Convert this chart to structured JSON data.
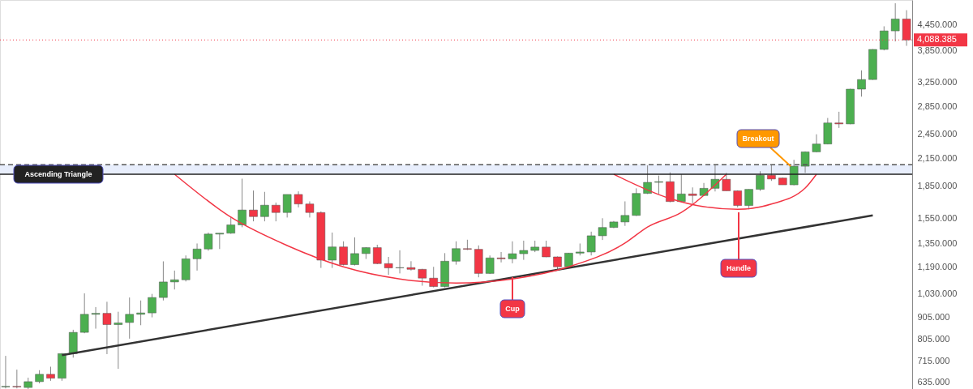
{
  "chart_data": {
    "type": "candlestick",
    "log": "y",
    "grid": false,
    "tick_labels": "y",
    "categories": [
      null,
      null,
      null,
      null,
      null,
      null,
      null,
      null,
      null,
      null,
      null,
      null,
      null,
      null,
      null,
      null,
      null,
      null,
      null,
      null,
      null,
      null,
      null,
      null,
      null,
      null,
      null,
      null,
      null,
      null,
      null,
      null,
      null,
      null,
      null,
      null,
      null,
      null,
      null,
      null,
      null,
      null,
      null,
      null,
      null,
      null,
      null,
      null,
      null,
      null,
      null,
      null,
      null,
      null,
      null,
      null,
      null,
      null,
      null,
      null,
      null,
      null,
      null,
      null,
      null,
      null,
      null,
      null,
      null,
      null,
      null,
      null,
      null,
      null,
      null,
      null,
      null,
      null,
      null,
      null,
      null
    ],
    "ohlc": [
      [
        620,
        734,
        615,
        622
      ],
      [
        622,
        681,
        615,
        620
      ],
      [
        618,
        652,
        613,
        638
      ],
      [
        638,
        679,
        632,
        664
      ],
      [
        664,
        692,
        641,
        650
      ],
      [
        650,
        745,
        641,
        743
      ],
      [
        743,
        846,
        727,
        834
      ],
      [
        834,
        1031,
        830,
        920
      ],
      [
        920,
        957,
        851,
        925
      ],
      [
        925,
        985,
        741,
        870
      ],
      [
        870,
        933,
        684,
        878
      ],
      [
        880,
        1008,
        806,
        920
      ],
      [
        920,
        992,
        867,
        927
      ],
      [
        927,
        1028,
        905,
        1008
      ],
      [
        1008,
        1227,
        992,
        1097
      ],
      [
        1097,
        1167,
        1053,
        1110
      ],
      [
        1110,
        1267,
        1100,
        1244
      ],
      [
        1244,
        1352,
        1167,
        1312
      ],
      [
        1312,
        1435,
        1300,
        1423
      ],
      [
        1423,
        1430,
        1312,
        1430
      ],
      [
        1430,
        1563,
        1425,
        1496
      ],
      [
        1496,
        1923,
        1477,
        1622
      ],
      [
        1622,
        1803,
        1525,
        1565
      ],
      [
        1565,
        1790,
        1525,
        1665
      ],
      [
        1665,
        1689,
        1525,
        1600
      ],
      [
        1600,
        1765,
        1557,
        1765
      ],
      [
        1765,
        1795,
        1645,
        1676
      ],
      [
        1676,
        1700,
        1557,
        1600
      ],
      [
        1600,
        1610,
        1184,
        1235
      ],
      [
        1235,
        1435,
        1184,
        1327
      ],
      [
        1327,
        1368,
        1200,
        1205
      ],
      [
        1205,
        1398,
        1200,
        1280
      ],
      [
        1280,
        1325,
        1243,
        1322
      ],
      [
        1322,
        1343,
        1208,
        1212
      ],
      [
        1212,
        1257,
        1140,
        1184
      ],
      [
        1184,
        1303,
        1149,
        1186
      ],
      [
        1186,
        1228,
        1167,
        1175
      ],
      [
        1175,
        1178,
        1075,
        1120
      ],
      [
        1120,
        1191,
        1065,
        1070
      ],
      [
        1070,
        1283,
        1065,
        1228
      ],
      [
        1228,
        1368,
        1205,
        1315
      ],
      [
        1315,
        1380,
        1305,
        1310
      ],
      [
        1310,
        1338,
        1125,
        1149
      ],
      [
        1149,
        1267,
        1145,
        1250
      ],
      [
        1250,
        1291,
        1220,
        1244
      ],
      [
        1244,
        1368,
        1214,
        1279
      ],
      [
        1279,
        1373,
        1237,
        1302
      ],
      [
        1302,
        1373,
        1290,
        1326
      ],
      [
        1326,
        1373,
        1255,
        1257
      ],
      [
        1257,
        1260,
        1167,
        1191
      ],
      [
        1191,
        1285,
        1185,
        1283
      ],
      [
        1283,
        1352,
        1267,
        1291
      ],
      [
        1291,
        1442,
        1267,
        1410
      ],
      [
        1410,
        1551,
        1378,
        1475
      ],
      [
        1475,
        1528,
        1470,
        1520
      ],
      [
        1520,
        1700,
        1488,
        1575
      ],
      [
        1575,
        1825,
        1570,
        1775
      ],
      [
        1775,
        2067,
        1770,
        1885
      ],
      [
        1885,
        1956,
        1770,
        1892
      ],
      [
        1892,
        1990,
        1692,
        1698
      ],
      [
        1698,
        1970,
        1692,
        1770
      ],
      [
        1770,
        1834,
        1683,
        1755
      ],
      [
        1755,
        1879,
        1750,
        1825
      ],
      [
        1825,
        2074,
        1794,
        1917
      ],
      [
        1917,
        1985,
        1800,
        1800
      ],
      [
        1800,
        1805,
        1645,
        1662
      ],
      [
        1662,
        1815,
        1628,
        1815
      ],
      [
        1815,
        2003,
        1800,
        1960
      ],
      [
        1960,
        2074,
        1900,
        1920
      ],
      [
        1930,
        1935,
        1860,
        1860
      ],
      [
        1860,
        2131,
        1855,
        2058
      ],
      [
        2058,
        2230,
        1985,
        2225
      ],
      [
        2225,
        2448,
        2220,
        2322
      ],
      [
        2322,
        2675,
        2318,
        2604
      ],
      [
        2604,
        2767,
        2534,
        2590
      ],
      [
        2590,
        3135,
        2585,
        3129
      ],
      [
        3129,
        3465,
        3004,
        3297
      ],
      [
        3297,
        3890,
        3290,
        3883
      ],
      [
        3883,
        4403,
        3863,
        4295
      ],
      [
        4295,
        4990,
        4055,
        4582
      ],
      [
        4582,
        4806,
        3960,
        4088
      ]
    ],
    "colors": [
      "#4caf50",
      "#f23645",
      "#4caf50",
      "#4caf50",
      "#f23645",
      "#4caf50",
      "#4caf50",
      "#4caf50",
      "#4caf50",
      "#f23645",
      "#4caf50",
      "#4caf50",
      "#4caf50",
      "#4caf50",
      "#4caf50",
      "#4caf50",
      "#4caf50",
      "#4caf50",
      "#4caf50",
      "#4caf50",
      "#4caf50",
      "#4caf50",
      "#f23645",
      "#4caf50",
      "#f23645",
      "#4caf50",
      "#f23645",
      "#f23645",
      "#f23645",
      "#4caf50",
      "#f23645",
      "#4caf50",
      "#4caf50",
      "#f23645",
      "#f23645",
      "#4caf50",
      "#f23645",
      "#f23645",
      "#f23645",
      "#4caf50",
      "#4caf50",
      "#f23645",
      "#f23645",
      "#4caf50",
      "#f23645",
      "#4caf50",
      "#4caf50",
      "#4caf50",
      "#f23645",
      "#f23645",
      "#4caf50",
      "#4caf50",
      "#4caf50",
      "#4caf50",
      "#4caf50",
      "#4caf50",
      "#4caf50",
      "#4caf50",
      "#4caf50",
      "#f23645",
      "#4caf50",
      "#f23645",
      "#4caf50",
      "#4caf50",
      "#f23645",
      "#f23645",
      "#4caf50",
      "#4caf50",
      "#f23645",
      "#f23645",
      "#4caf50",
      "#4caf50",
      "#4caf50",
      "#4caf50",
      "#f23645",
      "#4caf50",
      "#4caf50",
      "#4caf50",
      "#4caf50",
      "#4caf50",
      "#f23645"
    ],
    "series": [
      {
        "type": "line",
        "color": "#333333",
        "values": [
          null,
          null,
          null,
          null,
          null,
          737,
          null,
          null,
          null,
          null,
          null,
          null,
          null,
          null,
          null,
          null,
          null,
          null,
          null,
          null,
          null,
          null,
          null,
          null,
          null,
          null,
          null,
          null,
          null,
          null,
          null,
          null,
          null,
          null,
          null,
          null,
          null,
          null,
          null,
          null,
          null,
          null,
          null,
          null,
          null,
          null,
          null,
          null,
          null,
          null,
          null,
          null,
          null,
          null,
          null,
          null,
          null,
          null,
          null,
          null,
          null,
          null,
          null,
          null,
          null,
          null,
          null,
          null,
          null,
          null,
          null,
          null,
          null,
          null,
          null,
          null,
          null,
          1575,
          null,
          null,
          null
        ]
      },
      {
        "type": "line",
        "color": "#f23645",
        "values": [
          null,
          null,
          null,
          null,
          null,
          null,
          null,
          null,
          null,
          null,
          null,
          null,
          null,
          null,
          null,
          1970,
          null,
          null,
          null,
          null,
          1560,
          null,
          null,
          null,
          null,
          1337,
          null,
          null,
          null,
          null,
          1191,
          null,
          null,
          null,
          null,
          1115,
          null,
          null,
          null,
          null,
          1090,
          null,
          null,
          null,
          null,
          1115,
          null,
          null,
          null,
          null,
          1191,
          null,
          null,
          null,
          null,
          1355,
          null,
          1479,
          null,
          null,
          1601,
          null,
          null,
          null,
          1970,
          null,
          null,
          null,
          null,
          null,
          null,
          null,
          null,
          null,
          null,
          null,
          null,
          null,
          null,
          null,
          null
        ]
      },
      {
        "type": "line",
        "color": "#f23645",
        "values": [
          null,
          null,
          null,
          null,
          null,
          null,
          null,
          null,
          null,
          null,
          null,
          null,
          null,
          null,
          null,
          null,
          null,
          null,
          null,
          null,
          null,
          null,
          null,
          null,
          null,
          null,
          null,
          null,
          null,
          null,
          null,
          null,
          null,
          null,
          null,
          null,
          null,
          null,
          null,
          null,
          null,
          null,
          null,
          null,
          null,
          null,
          null,
          null,
          null,
          null,
          null,
          null,
          null,
          null,
          1970,
          null,
          null,
          null,
          null,
          1726,
          null,
          null,
          1651,
          null,
          null,
          1628,
          null,
          null,
          1675,
          null,
          null,
          1828,
          1970,
          null,
          null,
          null,
          null,
          null,
          null,
          null,
          null
        ]
      }
    ],
    "ylim": [
      613,
      5080
    ],
    "yticks": [
      {
        "value": 635,
        "label": "635.000"
      },
      {
        "value": 715,
        "label": "715.000"
      },
      {
        "value": 805,
        "label": "805.000"
      },
      {
        "value": 905,
        "label": "905.000"
      },
      {
        "value": 1030,
        "label": "1,030.000"
      },
      {
        "value": 1190,
        "label": "1,190.000"
      },
      {
        "value": 1350,
        "label": "1,350.000"
      },
      {
        "value": 1550,
        "label": "1,550.000"
      },
      {
        "value": 1850,
        "label": "1,850.000"
      },
      {
        "value": 2150,
        "label": "2,150.000"
      },
      {
        "value": 2450,
        "label": "2,450.000"
      },
      {
        "value": 2850,
        "label": "2,850.000"
      },
      {
        "value": 3250,
        "label": "3,250.000"
      },
      {
        "value": 3850,
        "label": "3,850.000"
      },
      {
        "value": 4450,
        "label": "4,450.000"
      }
    ],
    "ref_lines": [
      {
        "axis": "y",
        "value": 4088.385,
        "label": "4,088.385",
        "color": "#f23645",
        "line_style": "dotted"
      },
      {
        "axis": "y",
        "value": 1970,
        "color": "#222222",
        "line_style": "solid"
      },
      {
        "axis": "y",
        "value": 2074,
        "color": "#555555",
        "line_style": "dashed"
      }
    ],
    "bands": [
      {
        "axis": "y",
        "from": 1970,
        "to": 2074,
        "color": "#e8eefc"
      }
    ],
    "annotations": [
      "Ascending Triangle",
      "Cup",
      "Handle",
      "Breakout"
    ]
  }
}
